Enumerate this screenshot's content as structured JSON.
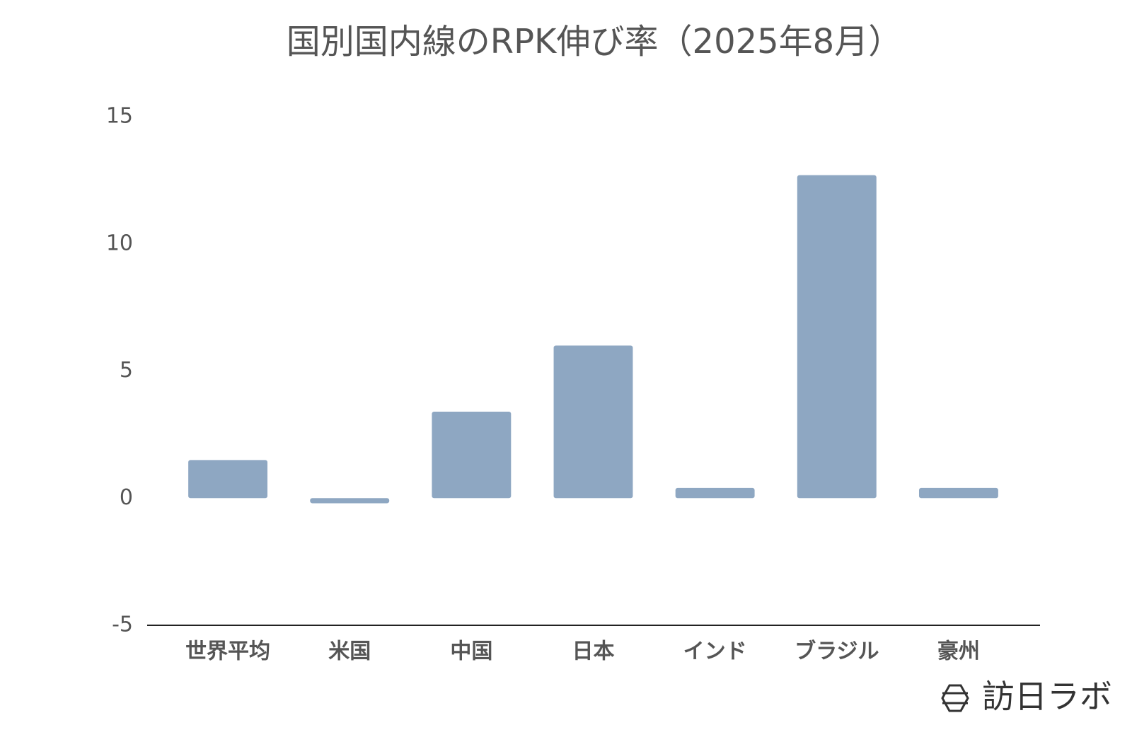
{
  "chart_data": {
    "type": "bar",
    "title": "国別国内線のRPK伸び率（2025年8月）",
    "categories": [
      "世界平均",
      "米国",
      "中国",
      "日本",
      "インド",
      "ブラジル",
      "豪州"
    ],
    "values": [
      1.5,
      -0.2,
      3.4,
      6.0,
      0.4,
      12.7,
      0.4
    ],
    "color": "#8ea7c2",
    "ylim": [
      -5,
      15
    ],
    "yticks": [
      -5,
      0,
      5,
      10,
      15
    ],
    "grid": false,
    "watermark": "訪日ラボ"
  }
}
